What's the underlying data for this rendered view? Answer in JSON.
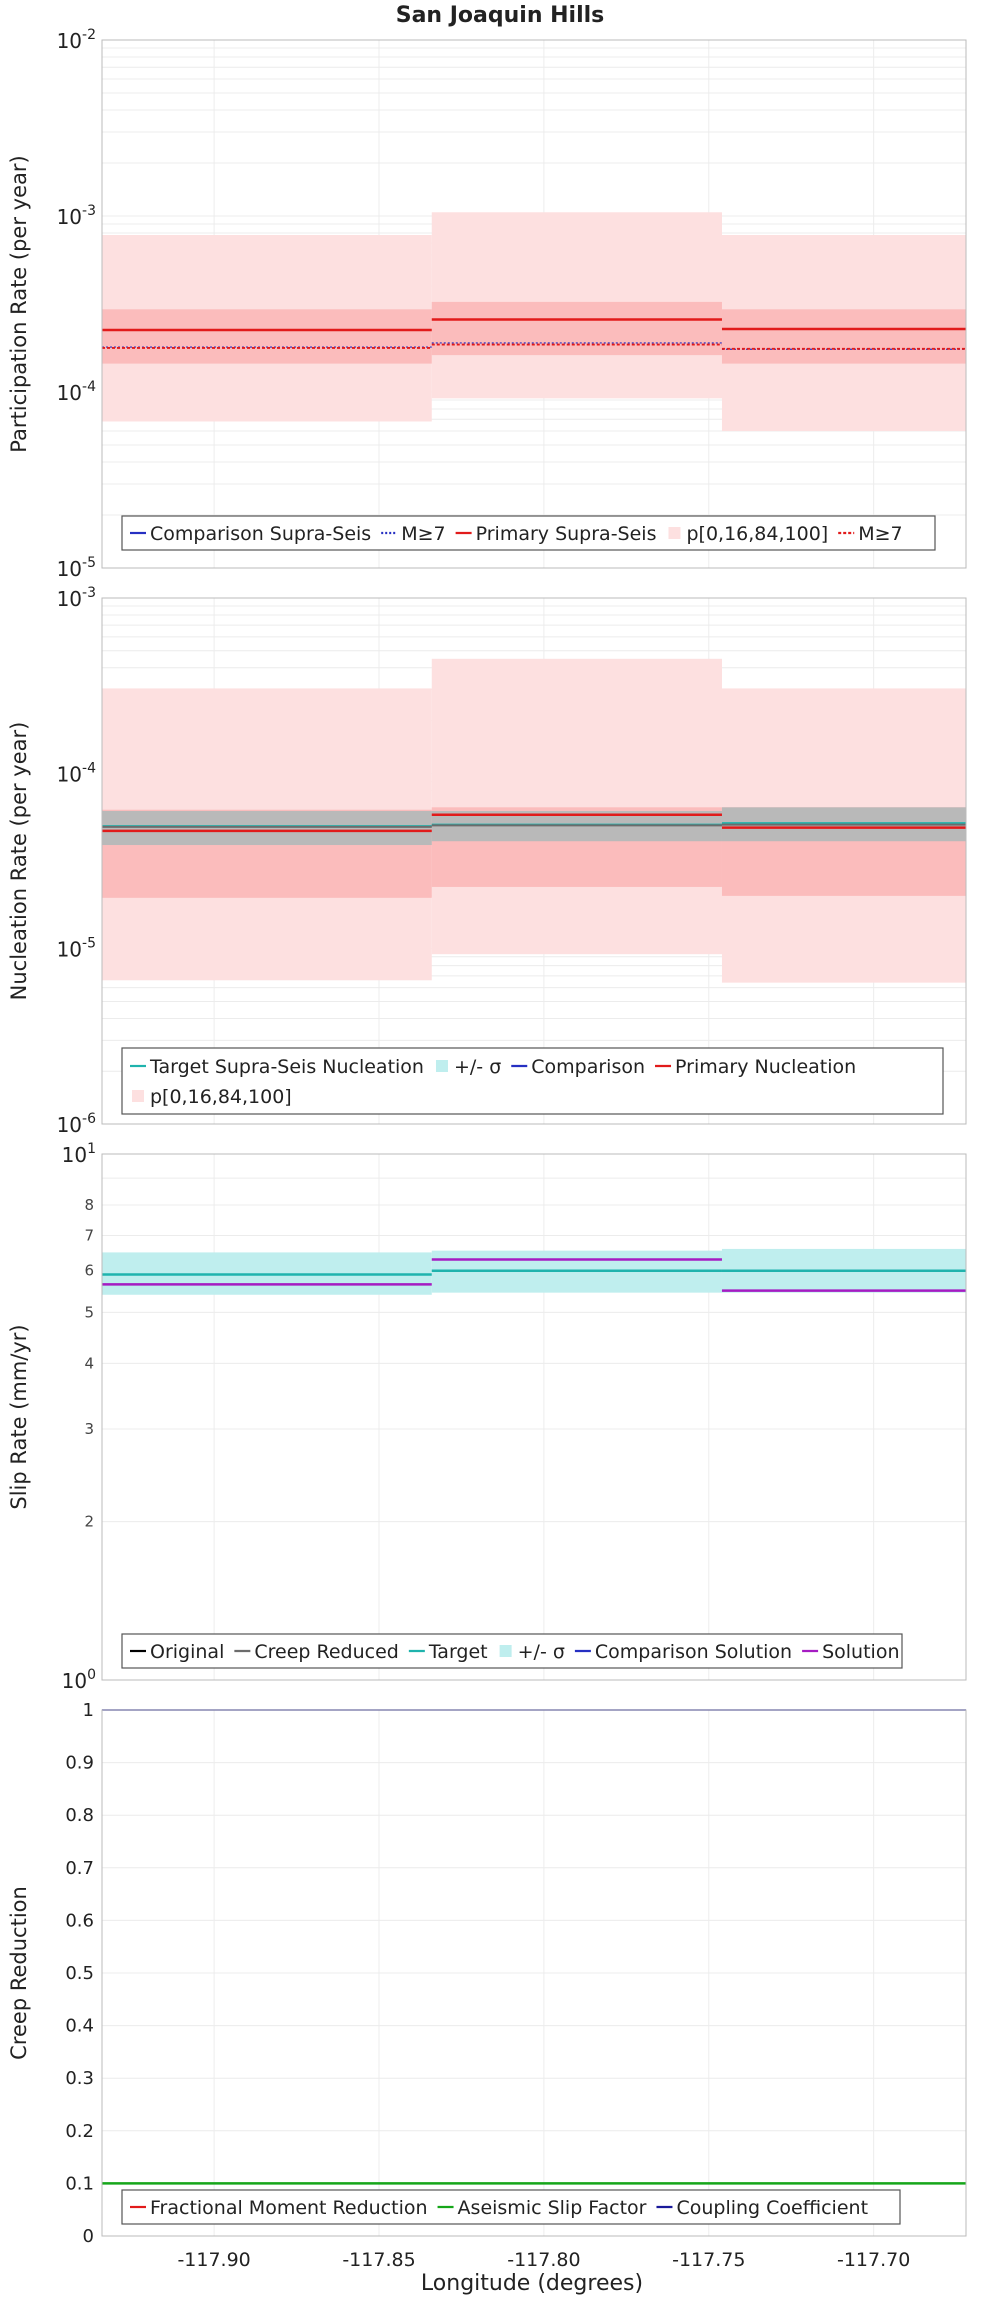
{
  "title": "San Joaquin Hills",
  "xlabel": "Longitude (degrees)",
  "colors": {
    "comparison": "#2630c2",
    "primary": "#e11b1b",
    "band_outer": "#fde0e0",
    "band_inner": "#fbbcbc",
    "target": "#1fb3ad",
    "target_band": "#bfeeee",
    "solution": "#a51cc2",
    "gray": "#6c6c6c",
    "gray_band": "#b9b9b9",
    "aseismic": "#16a61a",
    "coupling": "#1a1a9a",
    "grid": "#ececec"
  },
  "chart_data": [
    {
      "type": "line",
      "name": "participation",
      "ylabel": "Participation Rate (per year)",
      "yscale": "log",
      "ylim": [
        1e-05,
        0.01
      ],
      "xlim": [
        -117.934,
        -117.672
      ],
      "xticks": [
        -117.9,
        -117.85,
        -117.8,
        -117.75,
        -117.7
      ],
      "xtick_labels": [
        "-117.90",
        "-117.85",
        "-117.80",
        "-117.75",
        "-117.70"
      ],
      "ytick_labels": [
        {
          "base": "10",
          "exp": "-5"
        },
        {
          "base": "10",
          "exp": "-4"
        },
        {
          "base": "10",
          "exp": "-3"
        },
        {
          "base": "10",
          "exp": "-2"
        }
      ],
      "segments": [
        [
          -117.934,
          -117.834
        ],
        [
          -117.834,
          -117.746
        ],
        [
          -117.746,
          -117.672
        ]
      ],
      "bands": [
        {
          "color_key": "band_outer",
          "lower": [
            6.8e-05,
            9.2e-05,
            6e-05
          ],
          "upper": [
            0.00078,
            0.00105,
            0.00078
          ]
        },
        {
          "color_key": "band_inner",
          "lower": [
            0.000145,
            0.000162,
            0.000145
          ],
          "upper": [
            0.000295,
            0.000325,
            0.000295
          ]
        }
      ],
      "series": [
        {
          "color_key": "comparison",
          "dash": "2,2",
          "width": 1.2,
          "values": [
            0.00018,
            0.00019,
            0.000175
          ]
        },
        {
          "color_key": "primary",
          "dash": "3,2",
          "width": 1.8,
          "values": [
            0.000178,
            0.000186,
            0.000176
          ]
        },
        {
          "color_key": "primary",
          "dash": "",
          "width": 2.5,
          "values": [
            0.000225,
            0.000258,
            0.000228
          ]
        }
      ],
      "legend": {
        "rows": [
          [
            {
              "label": "Comparison Supra-Seis",
              "style": "line",
              "color_key": "comparison",
              "dash": ""
            },
            {
              "label": "M≥7",
              "style": "line",
              "color_key": "comparison",
              "dash": "2,2"
            },
            {
              "label": "Primary Supra-Seis",
              "style": "line",
              "color_key": "primary",
              "dash": ""
            },
            {
              "label": "p[0,16,84,100]",
              "style": "swatch",
              "color_key": "band_outer",
              "dash": ""
            },
            {
              "label": "M≥7",
              "style": "line",
              "color_key": "primary",
              "dash": "3,2"
            }
          ]
        ]
      }
    },
    {
      "type": "line",
      "name": "nucleation",
      "ylabel": "Nucleation Rate (per year)",
      "yscale": "log",
      "ylim": [
        1e-06,
        0.001
      ],
      "xlim": [
        -117.934,
        -117.672
      ],
      "xticks": [
        -117.9,
        -117.85,
        -117.8,
        -117.75,
        -117.7
      ],
      "ytick_labels": [
        {
          "base": "10",
          "exp": "-6"
        },
        {
          "base": "10",
          "exp": "-5"
        },
        {
          "base": "10",
          "exp": "-4"
        },
        {
          "base": "10",
          "exp": "-3"
        }
      ],
      "segments": [
        [
          -117.934,
          -117.834
        ],
        [
          -117.834,
          -117.746
        ],
        [
          -117.746,
          -117.672
        ]
      ],
      "bands": [
        {
          "color_key": "band_outer",
          "lower": [
            6.6e-06,
            9.3e-06,
            6.4e-06
          ],
          "upper": [
            0.000305,
            0.00045,
            0.000305
          ]
        },
        {
          "color_key": "band_inner",
          "lower": [
            1.95e-05,
            2.25e-05,
            2e-05
          ],
          "upper": [
            6.2e-05,
            6.4e-05,
            6.4e-05
          ]
        },
        {
          "color_key": "gray_band",
          "lower": [
            3.9e-05,
            4.1e-05,
            4.1e-05
          ],
          "upper": [
            6.1e-05,
            6.1e-05,
            6.4e-05
          ]
        }
      ],
      "series": [
        {
          "color_key": "target",
          "dash": "",
          "width": 2,
          "values": [
            5e-05,
            5.1e-05,
            5.2e-05
          ]
        },
        {
          "color_key": "gray",
          "dash": "",
          "width": 2,
          "values": [
            4.95e-05,
            5.05e-05,
            5.1e-05
          ]
        },
        {
          "color_key": "primary",
          "dash": "",
          "width": 2.5,
          "values": [
            4.7e-05,
            5.8e-05,
            4.9e-05
          ]
        }
      ],
      "legend": {
        "rows": [
          [
            {
              "label": "Target Supra-Seis Nucleation",
              "style": "line",
              "color_key": "target",
              "dash": ""
            },
            {
              "label": "+/- σ",
              "style": "swatch",
              "color_key": "target_band",
              "dash": ""
            },
            {
              "label": "Comparison",
              "style": "line",
              "color_key": "comparison",
              "dash": ""
            },
            {
              "label": "Primary Nucleation",
              "style": "line",
              "color_key": "primary",
              "dash": ""
            }
          ],
          [
            {
              "label": "p[0,16,84,100]",
              "style": "swatch",
              "color_key": "band_outer",
              "dash": ""
            }
          ]
        ]
      }
    },
    {
      "type": "line",
      "name": "slip-rate",
      "ylabel": "Slip Rate (mm/yr)",
      "yscale": "log",
      "ylim": [
        1,
        10
      ],
      "xlim": [
        -117.934,
        -117.672
      ],
      "xticks": [
        -117.9,
        -117.85,
        -117.8,
        -117.75,
        -117.7
      ],
      "ytick_labels": [
        {
          "base": "10",
          "exp": "0",
          "value": 1
        },
        {
          "base": "10",
          "exp": "1",
          "value": 10
        }
      ],
      "minor_tick_labels": [
        "2",
        "3",
        "4",
        "5",
        "6",
        "7",
        "8"
      ],
      "minor_tick_values": [
        2,
        3,
        4,
        5,
        6,
        7,
        8
      ],
      "segments": [
        [
          -117.934,
          -117.834
        ],
        [
          -117.834,
          -117.746
        ],
        [
          -117.746,
          -117.672
        ]
      ],
      "bands": [
        {
          "color_key": "target_band",
          "lower": [
            5.4,
            5.45,
            5.45
          ],
          "upper": [
            6.5,
            6.55,
            6.6
          ]
        }
      ],
      "series": [
        {
          "color_key": "target",
          "dash": "",
          "width": 2.5,
          "values": [
            5.9,
            6.0,
            6.0
          ]
        },
        {
          "color_key": "solution",
          "dash": "",
          "width": 2.5,
          "values": [
            5.65,
            6.3,
            5.5
          ]
        }
      ],
      "legend": {
        "rows": [
          [
            {
              "label": "Original",
              "style": "line",
              "color_key": "black",
              "dash": ""
            },
            {
              "label": "Creep Reduced",
              "style": "line",
              "color_key": "gray",
              "dash": ""
            },
            {
              "label": "Target",
              "style": "line",
              "color_key": "target",
              "dash": ""
            },
            {
              "label": "+/- σ",
              "style": "swatch",
              "color_key": "target_band",
              "dash": ""
            },
            {
              "label": "Comparison Solution",
              "style": "line",
              "color_key": "comparison",
              "dash": ""
            },
            {
              "label": "Solution",
              "style": "line",
              "color_key": "solution",
              "dash": ""
            }
          ]
        ]
      }
    },
    {
      "type": "line",
      "name": "creep-reduction",
      "ylabel": "Creep Reduction",
      "yscale": "linear",
      "ylim": [
        0,
        1
      ],
      "xlim": [
        -117.934,
        -117.672
      ],
      "xticks": [
        -117.9,
        -117.85,
        -117.8,
        -117.75,
        -117.7
      ],
      "xtick_labels": [
        "-117.90",
        "-117.85",
        "-117.80",
        "-117.75",
        "-117.70"
      ],
      "ytick_values": [
        0,
        0.1,
        0.2,
        0.3,
        0.4,
        0.5,
        0.6,
        0.7,
        0.8,
        0.9,
        1
      ],
      "ytick_labels_text": [
        "0",
        "0.1",
        "0.2",
        "0.3",
        "0.4",
        "0.5",
        "0.6",
        "0.7",
        "0.8",
        "0.9",
        "1"
      ],
      "segments": [
        [
          -117.934,
          -117.672
        ]
      ],
      "bands": [],
      "series": [
        {
          "color_key": "aseismic",
          "dash": "",
          "width": 2.5,
          "values": [
            0.1
          ]
        },
        {
          "color_key": "coupling",
          "dash": "",
          "width": 1.5,
          "values": [
            1.0
          ]
        }
      ],
      "legend": {
        "rows": [
          [
            {
              "label": "Fractional Moment Reduction",
              "style": "line",
              "color_key": "primary",
              "dash": ""
            },
            {
              "label": "Aseismic Slip Factor",
              "style": "line",
              "color_key": "aseismic",
              "dash": ""
            },
            {
              "label": "Coupling Coefficient",
              "style": "line",
              "color_key": "coupling",
              "dash": ""
            }
          ]
        ]
      }
    }
  ]
}
